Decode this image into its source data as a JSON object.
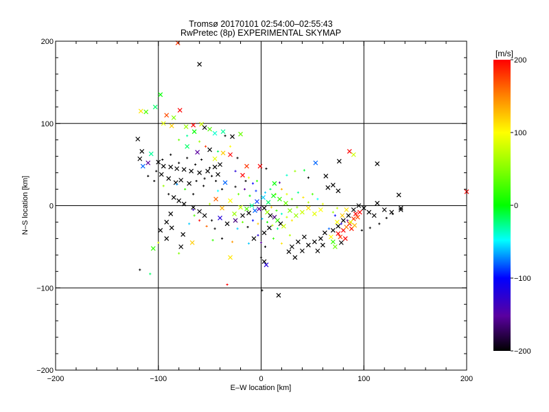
{
  "title_line1": "Tromsø 20170101 02:54:00–02:55:43",
  "title_line2": "RwPretec (8p) EXPERIMENTAL SKYMAP",
  "colorbar": {
    "unit_label": "[m/s]",
    "ticks": [
      "200",
      "100",
      "0",
      "−100",
      "−200"
    ],
    "range": [
      -200,
      200
    ]
  },
  "chart_data": {
    "type": "scatter",
    "title": "Tromsø 20170101 02:54:00–02:55:43",
    "subtitle": "RwPretec (8p) EXPERIMENTAL SKYMAP",
    "xlabel": "E–W location [km]",
    "ylabel": "N–S location [km]",
    "xlim": [
      -200,
      200
    ],
    "ylim": [
      -200,
      200
    ],
    "x_ticks": [
      "−200",
      "−100",
      "0",
      "100",
      "200"
    ],
    "y_ticks": [
      "−200",
      "−100",
      "0",
      "100",
      "200"
    ],
    "grid": true,
    "color_encodes": "velocity [m/s]",
    "markers": [
      "x",
      "+"
    ],
    "points": [
      [
        -81,
        198,
        180,
        "x"
      ],
      [
        -60,
        172,
        -200,
        "x"
      ],
      [
        -98,
        135,
        0,
        "x"
      ],
      [
        -103,
        120,
        -20,
        "x"
      ],
      [
        -117,
        115,
        110,
        "x"
      ],
      [
        -112,
        114,
        30,
        "x"
      ],
      [
        -79,
        116,
        200,
        "x"
      ],
      [
        -92,
        110,
        170,
        "x"
      ],
      [
        -85,
        107,
        50,
        "x"
      ],
      [
        -95,
        100,
        90,
        "x"
      ],
      [
        -87,
        97,
        120,
        "x"
      ],
      [
        -73,
        96,
        60,
        "x"
      ],
      [
        -66,
        98,
        200,
        "x"
      ],
      [
        -58,
        99,
        80,
        "x"
      ],
      [
        -55,
        95,
        -200,
        "x"
      ],
      [
        -50,
        93,
        30,
        "x"
      ],
      [
        -65,
        90,
        0,
        "x"
      ],
      [
        -45,
        88,
        -40,
        "x"
      ],
      [
        -37,
        90,
        -30,
        "x"
      ],
      [
        -28,
        84,
        -200,
        "x"
      ],
      [
        -20,
        87,
        40,
        "x"
      ],
      [
        -35,
        85,
        -200,
        "+"
      ],
      [
        -120,
        81,
        -200,
        "x"
      ],
      [
        -116,
        66,
        -200,
        "x"
      ],
      [
        -107,
        63,
        -30,
        "x"
      ],
      [
        -118,
        57,
        -200,
        "x"
      ],
      [
        -115,
        48,
        -80,
        "x"
      ],
      [
        -110,
        52,
        -150,
        "x"
      ],
      [
        -100,
        53,
        -200,
        "x"
      ],
      [
        -95,
        48,
        -200,
        "x"
      ],
      [
        -88,
        47,
        -200,
        "x"
      ],
      [
        -82,
        45,
        -200,
        "x"
      ],
      [
        -75,
        44,
        -200,
        "x"
      ],
      [
        -68,
        42,
        -200,
        "x"
      ],
      [
        -60,
        40,
        -200,
        "x"
      ],
      [
        -52,
        42,
        -200,
        "x"
      ],
      [
        -45,
        47,
        -200,
        "x"
      ],
      [
        -40,
        50,
        -200,
        "x"
      ],
      [
        -97,
        38,
        -200,
        "x"
      ],
      [
        -90,
        33,
        -200,
        "x"
      ],
      [
        -83,
        28,
        -200,
        "x"
      ],
      [
        -78,
        31,
        -200,
        "x"
      ],
      [
        -70,
        27,
        -200,
        "x"
      ],
      [
        -63,
        30,
        -200,
        "+"
      ],
      [
        -55,
        33,
        -200,
        "+"
      ],
      [
        -48,
        36,
        -200,
        "+"
      ],
      [
        -42,
        38,
        -200,
        "x"
      ],
      [
        -72,
        72,
        -20,
        "x"
      ],
      [
        -62,
        65,
        -150,
        "x"
      ],
      [
        -50,
        68,
        -200,
        "x"
      ],
      [
        -37,
        64,
        120,
        "x"
      ],
      [
        -45,
        57,
        90,
        "x"
      ],
      [
        -30,
        62,
        200,
        "x"
      ],
      [
        -23,
        58,
        -200,
        "+"
      ],
      [
        -14,
        48,
        180,
        "x"
      ],
      [
        -18,
        37,
        200,
        "x"
      ],
      [
        -35,
        28,
        -80,
        "x"
      ],
      [
        -25,
        23,
        -200,
        "+"
      ],
      [
        -15,
        30,
        -200,
        "+"
      ],
      [
        -8,
        27,
        -100,
        "+"
      ],
      [
        -85,
        10,
        -200,
        "x"
      ],
      [
        -80,
        6,
        -200,
        "x"
      ],
      [
        -75,
        2,
        -200,
        "x"
      ],
      [
        -66,
        -2,
        -200,
        "x"
      ],
      [
        -60,
        -7,
        -200,
        "x"
      ],
      [
        -55,
        -12,
        -200,
        "x"
      ],
      [
        -48,
        -18,
        -200,
        "+"
      ],
      [
        -40,
        -15,
        -120,
        "x"
      ],
      [
        -33,
        -22,
        -200,
        "x"
      ],
      [
        -25,
        -18,
        -160,
        "x"
      ],
      [
        -18,
        -12,
        -200,
        "x"
      ],
      [
        -12,
        -9,
        -200,
        "x"
      ],
      [
        -6,
        -6,
        -80,
        "x"
      ],
      [
        -2,
        -4,
        -150,
        "x"
      ],
      [
        3,
        -3,
        -200,
        "x"
      ],
      [
        6,
        -8,
        60,
        "x"
      ],
      [
        9,
        -12,
        -200,
        "x"
      ],
      [
        13,
        -14,
        -160,
        "x"
      ],
      [
        16,
        -18,
        20,
        "x"
      ],
      [
        19,
        -22,
        -200,
        "x"
      ],
      [
        22,
        -25,
        80,
        "x"
      ],
      [
        8,
        -27,
        -200,
        "x"
      ],
      [
        3,
        -33,
        -200,
        "x"
      ],
      [
        -3,
        -36,
        -120,
        "+"
      ],
      [
        -7,
        -40,
        -200,
        "x"
      ],
      [
        0,
        -45,
        -150,
        "+"
      ],
      [
        4,
        -50,
        -200,
        "+"
      ],
      [
        3,
        -68,
        -200,
        "x"
      ],
      [
        5,
        -72,
        -120,
        "x"
      ],
      [
        0,
        -63,
        -200,
        "+"
      ],
      [
        17,
        -109,
        -200,
        "x"
      ],
      [
        1,
        -103,
        -200,
        "+"
      ],
      [
        -88,
        -10,
        -200,
        "x"
      ],
      [
        -92,
        -20,
        -200,
        "x"
      ],
      [
        -98,
        -30,
        -200,
        "x"
      ],
      [
        -87,
        -27,
        -200,
        "x"
      ],
      [
        -76,
        -35,
        -200,
        "x"
      ],
      [
        -92,
        -40,
        -200,
        "x"
      ],
      [
        -67,
        -45,
        120,
        "x"
      ],
      [
        -78,
        -50,
        -200,
        "x"
      ],
      [
        -105,
        -52,
        20,
        "x"
      ],
      [
        -118,
        -78,
        -200,
        "+"
      ],
      [
        -108,
        -83,
        -20,
        "+"
      ],
      [
        -30,
        -63,
        110,
        "x"
      ],
      [
        -33,
        -96,
        200,
        "+"
      ],
      [
        27,
        -56,
        -200,
        "x"
      ],
      [
        33,
        -63,
        -200,
        "x"
      ],
      [
        40,
        -55,
        -200,
        "x"
      ],
      [
        46,
        -48,
        -200,
        "x"
      ],
      [
        52,
        -44,
        -200,
        "x"
      ],
      [
        58,
        -40,
        -200,
        "x"
      ],
      [
        30,
        -50,
        -200,
        "x"
      ],
      [
        36,
        -44,
        -200,
        "x"
      ],
      [
        42,
        -38,
        -200,
        "x"
      ],
      [
        55,
        -55,
        -200,
        "x"
      ],
      [
        60,
        -48,
        -200,
        "x"
      ],
      [
        62,
        -33,
        -200,
        "x"
      ],
      [
        70,
        -30,
        -200,
        "x"
      ],
      [
        75,
        -25,
        -200,
        "x"
      ],
      [
        80,
        -18,
        -200,
        "x"
      ],
      [
        85,
        -12,
        -200,
        "x"
      ],
      [
        90,
        -5,
        -200,
        "x"
      ],
      [
        95,
        0,
        -200,
        "x"
      ],
      [
        100,
        -3,
        -200,
        "x"
      ],
      [
        105,
        -8,
        -200,
        "x"
      ],
      [
        110,
        -12,
        -200,
        "x"
      ],
      [
        113,
        3,
        -200,
        "x"
      ],
      [
        120,
        -5,
        -200,
        "x"
      ],
      [
        127,
        -8,
        -200,
        "x"
      ],
      [
        136,
        -5,
        -200,
        "x"
      ],
      [
        134,
        13,
        -200,
        "x"
      ],
      [
        113,
        51,
        -200,
        "x"
      ],
      [
        86,
        66,
        200,
        "x"
      ],
      [
        90,
        62,
        80,
        "x"
      ],
      [
        76,
        54,
        -200,
        "x"
      ],
      [
        63,
        36,
        -200,
        "x"
      ],
      [
        70,
        25,
        -200,
        "x"
      ],
      [
        75,
        18,
        -200,
        "x"
      ],
      [
        65,
        22,
        -200,
        "x"
      ],
      [
        53,
        52,
        -80,
        "x"
      ],
      [
        46,
        34,
        -200,
        "+"
      ],
      [
        42,
        43,
        -10,
        "+"
      ],
      [
        33,
        42,
        60,
        "+"
      ],
      [
        25,
        37,
        -40,
        "+"
      ],
      [
        13,
        27,
        0,
        "x"
      ],
      [
        18,
        28,
        -150,
        "+"
      ],
      [
        -1,
        48,
        200,
        "x"
      ],
      [
        5,
        45,
        -200,
        "+"
      ],
      [
        75,
        -34,
        200,
        "x"
      ],
      [
        77,
        -38,
        180,
        "x"
      ],
      [
        80,
        -30,
        200,
        "x"
      ],
      [
        83,
        -26,
        150,
        "x"
      ],
      [
        86,
        -22,
        200,
        "x"
      ],
      [
        90,
        -16,
        180,
        "x"
      ],
      [
        92,
        -10,
        200,
        "x"
      ],
      [
        96,
        -8,
        200,
        "x"
      ],
      [
        94,
        -14,
        170,
        "x"
      ],
      [
        88,
        -28,
        190,
        "x"
      ],
      [
        82,
        -40,
        200,
        "x"
      ],
      [
        78,
        -45,
        -200,
        "x"
      ],
      [
        72,
        -50,
        40,
        "x"
      ],
      [
        70,
        -44,
        20,
        "x"
      ],
      [
        68,
        -38,
        100,
        "x"
      ],
      [
        74,
        -20,
        100,
        "x"
      ],
      [
        79,
        -12,
        120,
        "x"
      ],
      [
        83,
        -5,
        110,
        "x"
      ],
      [
        87,
        -20,
        90,
        "x"
      ],
      [
        91,
        -24,
        130,
        "x"
      ],
      [
        72,
        -12,
        -100,
        "+"
      ],
      [
        78,
        -22,
        -120,
        "+"
      ],
      [
        84,
        -18,
        -150,
        "+"
      ],
      [
        66,
        -28,
        -80,
        "+"
      ],
      [
        70,
        -8,
        60,
        "+"
      ],
      [
        74,
        -3,
        80,
        "+"
      ],
      [
        58,
        -5,
        100,
        "x"
      ],
      [
        52,
        -10,
        90,
        "x"
      ],
      [
        46,
        -3,
        110,
        "x"
      ],
      [
        40,
        -8,
        80,
        "x"
      ],
      [
        34,
        -12,
        60,
        "x"
      ],
      [
        28,
        -6,
        50,
        "x"
      ],
      [
        24,
        3,
        40,
        "x"
      ],
      [
        18,
        8,
        20,
        "x"
      ],
      [
        12,
        12,
        0,
        "x"
      ],
      [
        7,
        4,
        -20,
        "x"
      ],
      [
        2,
        10,
        -60,
        "x"
      ],
      [
        -4,
        5,
        -90,
        "x"
      ],
      [
        -9,
        0,
        -30,
        "x"
      ],
      [
        -14,
        -4,
        30,
        "x"
      ],
      [
        -20,
        -2,
        80,
        "x"
      ],
      [
        -26,
        -10,
        60,
        "x"
      ],
      [
        -30,
        6,
        100,
        "x"
      ],
      [
        -38,
        -3,
        130,
        "x"
      ],
      [
        -44,
        8,
        160,
        "x"
      ],
      [
        10,
        -2,
        120,
        "+"
      ],
      [
        15,
        -6,
        20,
        "+"
      ],
      [
        20,
        -10,
        -40,
        "+"
      ],
      [
        25,
        -14,
        80,
        "+"
      ],
      [
        30,
        -18,
        110,
        "+"
      ],
      [
        35,
        -2,
        60,
        "+"
      ],
      [
        4,
        16,
        -60,
        "+"
      ],
      [
        9,
        20,
        -20,
        "+"
      ],
      [
        14,
        14,
        30,
        "+"
      ],
      [
        -5,
        18,
        -90,
        "+"
      ],
      [
        -11,
        12,
        0,
        "+"
      ],
      [
        -16,
        20,
        -150,
        "+"
      ],
      [
        -22,
        14,
        40,
        "+"
      ],
      [
        1,
        -16,
        -60,
        "+"
      ],
      [
        6,
        -20,
        10,
        "+"
      ],
      [
        11,
        -24,
        70,
        "+"
      ],
      [
        16,
        -28,
        -30,
        "+"
      ],
      [
        -3,
        -22,
        120,
        "+"
      ],
      [
        -8,
        -18,
        -100,
        "+"
      ],
      [
        -13,
        -26,
        -200,
        "+"
      ],
      [
        -18,
        -20,
        40,
        "+"
      ],
      [
        -23,
        -28,
        -60,
        "+"
      ],
      [
        20,
        20,
        130,
        "+"
      ],
      [
        25,
        14,
        90,
        "+"
      ],
      [
        30,
        8,
        40,
        "+"
      ],
      [
        36,
        16,
        -30,
        "+"
      ],
      [
        41,
        10,
        110,
        "+"
      ],
      [
        46,
        4,
        70,
        "+"
      ],
      [
        50,
        14,
        30,
        "+"
      ],
      [
        55,
        8,
        -50,
        "+"
      ],
      [
        60,
        2,
        90,
        "+"
      ],
      [
        -60,
        -18,
        200,
        "+"
      ],
      [
        -70,
        -22,
        -60,
        "+"
      ],
      [
        -53,
        -25,
        160,
        "+"
      ],
      [
        -45,
        -28,
        -200,
        "+"
      ],
      [
        -65,
        -12,
        30,
        "+"
      ],
      [
        -50,
        2,
        70,
        "+"
      ],
      [
        -42,
        18,
        -50,
        "+"
      ],
      [
        -56,
        24,
        -200,
        "+"
      ],
      [
        -66,
        -5,
        -130,
        "+"
      ],
      [
        -100,
        -45,
        90,
        "+"
      ],
      [
        -80,
        -58,
        50,
        "+"
      ],
      [
        -28,
        -44,
        140,
        "+"
      ],
      [
        -12,
        -46,
        -60,
        "+"
      ],
      [
        12,
        -40,
        20,
        "+"
      ],
      [
        20,
        -46,
        110,
        "+"
      ],
      [
        28,
        -36,
        70,
        "+"
      ],
      [
        -38,
        -40,
        -200,
        "+"
      ],
      [
        -47,
        -42,
        20,
        "+"
      ],
      [
        -80,
        80,
        40,
        "+"
      ],
      [
        -72,
        85,
        -30,
        "+"
      ],
      [
        -60,
        78,
        60,
        "+"
      ],
      [
        -54,
        72,
        180,
        "+"
      ],
      [
        -42,
        66,
        -20,
        "+"
      ],
      [
        -30,
        72,
        100,
        "+"
      ],
      [
        -25,
        42,
        -120,
        "+"
      ],
      [
        -12,
        34,
        90,
        "+"
      ],
      [
        -4,
        30,
        20,
        "+"
      ],
      [
        -66,
        14,
        -200,
        "+"
      ],
      [
        -74,
        20,
        20,
        "+"
      ],
      [
        -82,
        26,
        -70,
        "+"
      ],
      [
        -90,
        14,
        -200,
        "+"
      ],
      [
        -95,
        24,
        60,
        "+"
      ],
      [
        -104,
        30,
        -200,
        "+"
      ],
      [
        -110,
        36,
        -200,
        "+"
      ],
      [
        -102,
        42,
        -200,
        "+"
      ],
      [
        -96,
        56,
        -200,
        "+"
      ],
      [
        -88,
        62,
        -200,
        "+"
      ],
      [
        -80,
        52,
        -200,
        "+"
      ],
      [
        -72,
        58,
        -200,
        "+"
      ],
      [
        -64,
        50,
        -200,
        "+"
      ],
      [
        -58,
        56,
        -200,
        "+"
      ],
      [
        -50,
        46,
        -200,
        "+"
      ],
      [
        -44,
        30,
        -200,
        "+"
      ],
      [
        -38,
        20,
        -200,
        "+"
      ],
      [
        200,
        17,
        200,
        "x"
      ],
      [
        136,
        -3,
        -200,
        "x"
      ],
      [
        128,
        -10,
        -200,
        "+"
      ],
      [
        122,
        -15,
        -200,
        "+"
      ],
      [
        115,
        -22,
        -200,
        "+"
      ],
      [
        106,
        -27,
        -200,
        "+"
      ],
      [
        98,
        -30,
        -200,
        "+"
      ]
    ]
  }
}
